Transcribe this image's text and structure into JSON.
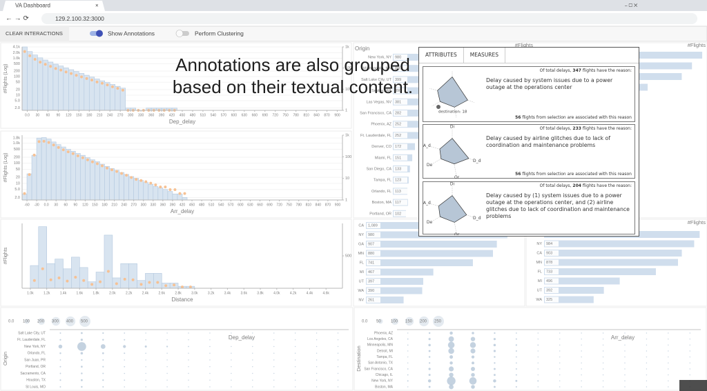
{
  "browser": {
    "tab_title": "VA Dashboard",
    "url_host": "129.2.100.32",
    "url_port": ":3000"
  },
  "toolbar": {
    "clear_button": "CLEAR INTERACTIONS",
    "toggles": [
      {
        "label": "Show Annotations",
        "on": true
      },
      {
        "label": "Perform Clustering",
        "on": false
      }
    ]
  },
  "caption": [
    "Annotations are also grouped",
    "based on their textual content."
  ],
  "histograms": [
    {
      "type": "histogram",
      "xlabel": "Dep_delay",
      "ylabel": "#Flights (Log)",
      "log": true,
      "grid": true,
      "color": "#c8d8ea",
      "marker_color": "#f2a766",
      "bins": [
        -15,
        0,
        15,
        30,
        45,
        60,
        75,
        90,
        105,
        120,
        135,
        150,
        165,
        180,
        195,
        210,
        225,
        240,
        255,
        270,
        285,
        300,
        315,
        330,
        345,
        360,
        375,
        390,
        405,
        420,
        435
      ],
      "values": [
        4100,
        2300,
        1500,
        1050,
        800,
        620,
        480,
        380,
        300,
        240,
        190,
        150,
        120,
        95,
        75,
        60,
        48,
        38,
        30,
        24,
        2,
        2,
        1,
        1,
        2,
        2,
        2,
        2,
        2,
        2
      ],
      "markers": [
        600,
        380,
        260,
        190,
        150,
        120,
        95,
        80,
        65,
        55,
        45,
        38,
        32,
        27,
        22,
        19,
        16,
        13,
        11,
        9,
        1,
        1,
        1,
        1,
        1,
        1,
        1,
        1,
        1,
        1
      ],
      "xlim": [
        -15,
        915
      ],
      "ylim": [
        1.5,
        4100
      ],
      "y2lim": [
        1,
        1000
      ],
      "xticks": [
        {
          "value": 0,
          "label": "0.0"
        },
        30,
        60,
        90,
        120,
        150,
        180,
        210,
        240,
        270,
        300,
        330,
        360,
        390,
        420,
        450,
        480,
        510,
        540,
        570,
        600,
        630,
        660,
        690,
        720,
        750,
        780,
        810,
        840,
        870,
        900
      ],
      "yticks": [
        {
          "value": 4100,
          "label": "4.1k"
        },
        {
          "value": 2000,
          "label": "2.0k"
        },
        {
          "value": 1000,
          "label": "1.0k"
        },
        500,
        200,
        100,
        50,
        20,
        10,
        {
          "value": 5,
          "label": "5.0"
        },
        {
          "value": 2,
          "label": "2.0"
        }
      ],
      "y2ticks": [
        {
          "value": 1000,
          "label": "1k"
        },
        100,
        10,
        1
      ]
    },
    {
      "type": "histogram",
      "xlabel": "Arr_delay",
      "ylabel": "#Flights (Log)",
      "log": true,
      "grid": true,
      "color": "#c8d8ea",
      "marker_color": "#f2a766",
      "bins": [
        -75,
        -60,
        -45,
        -30,
        -15,
        0,
        15,
        30,
        45,
        60,
        75,
        90,
        105,
        120,
        135,
        150,
        165,
        180,
        195,
        210,
        225,
        240,
        255,
        270,
        285,
        300,
        315,
        330,
        345,
        360,
        375,
        390,
        405,
        420,
        435
      ],
      "values": [
        3,
        30,
        250,
        1800,
        1900,
        1600,
        1150,
        850,
        650,
        500,
        400,
        310,
        250,
        190,
        150,
        120,
        90,
        70,
        55,
        45,
        35,
        28,
        22,
        18,
        14,
        11,
        9,
        7,
        6,
        5,
        4,
        3,
        3,
        2
      ],
      "markers": [
        2,
        15,
        120,
        500,
        520,
        460,
        350,
        270,
        210,
        170,
        140,
        110,
        90,
        72,
        58,
        48,
        38,
        30,
        25,
        21,
        17,
        14,
        11,
        9,
        8,
        7,
        6,
        5,
        4,
        4,
        3,
        3,
        2,
        2
      ],
      "xlim": [
        -75,
        915
      ],
      "ylim": [
        1.5,
        2500
      ],
      "y2lim": [
        1,
        1000
      ],
      "xticks": [
        -60,
        -30,
        {
          "value": 0,
          "label": "0.0"
        },
        30,
        60,
        90,
        120,
        150,
        180,
        210,
        240,
        270,
        300,
        330,
        360,
        390,
        420,
        450,
        480,
        510,
        540,
        570,
        600,
        630,
        660,
        690,
        720,
        750,
        780,
        810,
        840,
        870,
        900
      ],
      "yticks": [
        {
          "value": 1800,
          "label": "1.8k"
        },
        {
          "value": 1000,
          "label": "1.0k"
        },
        500,
        200,
        100,
        50,
        20,
        10,
        {
          "value": 5,
          "label": "5.0"
        },
        {
          "value": 2,
          "label": "2.0"
        }
      ],
      "y2ticks": [
        {
          "value": 1000,
          "label": "1k"
        },
        100,
        10,
        1
      ]
    },
    {
      "type": "histogram",
      "xlabel": "Distance",
      "ylabel": "#Flights",
      "log": false,
      "grid": false,
      "color": "#c8d8ea",
      "marker_color": "#f2a766",
      "bins": [
        1000,
        1100,
        1200,
        1300,
        1400,
        1500,
        1600,
        1700,
        1800,
        1900,
        2000,
        2100,
        2200,
        2300,
        2400,
        2500,
        2600,
        2700,
        2800,
        2900,
        3000
      ],
      "values": [
        350,
        950,
        380,
        450,
        300,
        480,
        320,
        100,
        250,
        820,
        160,
        380,
        380,
        120,
        230,
        230,
        80,
        80,
        30,
        30
      ],
      "markers": [
        120,
        300,
        130,
        160,
        110,
        170,
        120,
        60,
        100,
        260,
        70,
        140,
        130,
        60,
        90,
        90,
        40,
        50,
        20,
        20
      ],
      "xlim": [
        900,
        4800
      ],
      "ylim": [
        0,
        1000
      ],
      "y2lim": [
        0,
        1000
      ],
      "xticks": [
        {
          "value": 1000,
          "label": "1.0k"
        },
        {
          "value": 1200,
          "label": "1.2k"
        },
        {
          "value": 1400,
          "label": "1.4k"
        },
        {
          "value": 1600,
          "label": "1.6k"
        },
        {
          "value": 1800,
          "label": "1.8k"
        },
        {
          "value": 2000,
          "label": "2.0k"
        },
        {
          "value": 2200,
          "label": "2.2k"
        },
        {
          "value": 2400,
          "label": "2.4k"
        },
        {
          "value": 2600,
          "label": "2.6k"
        },
        {
          "value": 2800,
          "label": "2.8k"
        },
        {
          "value": 3000,
          "label": "3.0k"
        },
        {
          "value": 3200,
          "label": "3.2k"
        },
        {
          "value": 3400,
          "label": "3.4k"
        },
        {
          "value": 3600,
          "label": "3.6k"
        },
        {
          "value": 3800,
          "label": "3.8k"
        },
        {
          "value": 4000,
          "label": "4.0k"
        },
        {
          "value": 4200,
          "label": "4.2k"
        },
        {
          "value": 4400,
          "label": "4.4k"
        },
        {
          "value": 4600,
          "label": "4.6k"
        }
      ],
      "yticks": [],
      "y2ticks": [
        500
      ]
    }
  ],
  "bar_lists": [
    {
      "type": "bar",
      "title": "Origin",
      "value_title": "#Flights",
      "color": "#bcd0e6",
      "xlim": [
        0,
        1000
      ],
      "categories": [
        "New York, NY",
        "Minneapolis, MN",
        "Salt Lake City, UT",
        "Seattle, WA",
        "Las Vegas, NV",
        "San Francisco, CA",
        "Phoenix, AZ",
        "Ft. Lauderdale, FL",
        "Denver, CO",
        "Miami, FL",
        "San Diego, CA",
        "Tampa, FL",
        "Orlando, FL",
        "Boston, MA",
        "Portland, OR"
      ],
      "values": [
        980,
        880,
        399,
        390,
        381,
        282,
        252,
        252,
        172,
        151,
        133,
        123,
        113,
        117,
        102
      ]
    },
    {
      "type": "bar",
      "title": "Destination",
      "value_title": "#Flights",
      "color": "#bcd0e6",
      "xlim": [
        0,
        1000
      ],
      "categories": [
        null,
        null,
        null,
        null
      ],
      "values": [
        980,
        920,
        860,
        660
      ]
    },
    {
      "type": "bar",
      "color": "#bcd0e6",
      "xlim": [
        0,
        1100
      ],
      "categories": [
        "CA",
        "NY",
        "GA",
        "MN",
        "FL",
        "MI",
        "UT",
        "WA",
        "NV"
      ],
      "values": [
        1089,
        980,
        907,
        880,
        741,
        467,
        397,
        390,
        261
      ],
      "value_labels": [
        "1,089",
        "980",
        "907",
        "880",
        "741",
        "467",
        "397",
        "390",
        "261"
      ]
    },
    {
      "type": "bar",
      "value_title": "#Flights",
      "color": "#bcd0e6",
      "xlim": [
        0,
        1050
      ],
      "categories": [
        null,
        "NY",
        "CA",
        "MN",
        "FL",
        "MI",
        "UT",
        "WA"
      ],
      "values": [
        1020,
        984,
        903,
        878,
        733,
        496,
        392,
        325
      ]
    }
  ],
  "bubble_charts": [
    {
      "type": "bubble",
      "xlabel": "Dep_delay",
      "ylabel": "Origin",
      "color": "#8fa9c4",
      "xlim": [
        -15,
        405
      ],
      "x": [
        0,
        30,
        60,
        90,
        120,
        150,
        180,
        210,
        240,
        270,
        300,
        330,
        360,
        390
      ],
      "categories": [
        "Salt Lake City, UT",
        "Ft. Lauderdale, FL",
        "New York, NY",
        "Orlando, FL",
        "San Juan, PR",
        "Portland, OR",
        "Sacramento, CA",
        "Houston, TX",
        "St Louis, MO"
      ],
      "sizes": [
        [
          8,
          15,
          10,
          6,
          4,
          3,
          2,
          2,
          1,
          1,
          1,
          1,
          1,
          0
        ],
        [
          10,
          20,
          12,
          8,
          5,
          3,
          3,
          2,
          2,
          1,
          1,
          1,
          0,
          0
        ],
        [
          60,
          320,
          90,
          35,
          18,
          10,
          6,
          5,
          3,
          3,
          2,
          2,
          1,
          1
        ],
        [
          12,
          25,
          14,
          8,
          5,
          4,
          3,
          2,
          2,
          1,
          1,
          1,
          1,
          0
        ],
        [
          6,
          10,
          7,
          5,
          3,
          2,
          2,
          1,
          1,
          1,
          0,
          0,
          0,
          0
        ],
        [
          8,
          14,
          9,
          6,
          4,
          3,
          2,
          2,
          1,
          1,
          1,
          0,
          0,
          0
        ],
        [
          7,
          12,
          8,
          5,
          3,
          2,
          2,
          1,
          1,
          1,
          0,
          0,
          0,
          0
        ],
        [
          9,
          16,
          10,
          6,
          4,
          3,
          2,
          2,
          1,
          1,
          1,
          1,
          0,
          0
        ],
        [
          7,
          12,
          8,
          5,
          3,
          2,
          2,
          1,
          1,
          1,
          1,
          0,
          0,
          0
        ]
      ],
      "size_legend": [
        {
          "value": 0,
          "label": "0.0"
        },
        100,
        200,
        300,
        400,
        500
      ]
    },
    {
      "type": "bubble",
      "xlabel": "Arr_delay",
      "ylabel": "Destination",
      "color": "#8fa9c4",
      "xlim": [
        -75,
        345
      ],
      "x": [
        -60,
        -30,
        0,
        30,
        60,
        90,
        120,
        150,
        180,
        210,
        240,
        270,
        300,
        330
      ],
      "categories": [
        "Phoenix, AZ",
        "Los Angeles, CA",
        "Minneapolis, MN",
        "Detroit, MI",
        "Tampa, FL",
        "San Antonio, TX",
        "San Francisco, CA",
        "Chicago, IL",
        "New York, NY",
        "Boston, MA"
      ],
      "sizes": [
        [
          2,
          6,
          20,
          12,
          5,
          3,
          2,
          1,
          1,
          1,
          0,
          0,
          0,
          0
        ],
        [
          3,
          10,
          60,
          40,
          10,
          4,
          2,
          2,
          1,
          1,
          1,
          0,
          0,
          0
        ],
        [
          3,
          12,
          90,
          70,
          12,
          5,
          3,
          2,
          1,
          1,
          1,
          0,
          0,
          0
        ],
        [
          2,
          8,
          70,
          50,
          10,
          4,
          2,
          1,
          1,
          1,
          0,
          0,
          0,
          0
        ],
        [
          2,
          6,
          25,
          18,
          6,
          3,
          2,
          1,
          1,
          0,
          0,
          0,
          0,
          0
        ],
        [
          2,
          5,
          20,
          15,
          5,
          3,
          2,
          1,
          1,
          0,
          0,
          0,
          0,
          0
        ],
        [
          3,
          10,
          50,
          35,
          8,
          4,
          2,
          1,
          1,
          1,
          0,
          0,
          0,
          0
        ],
        [
          3,
          9,
          40,
          30,
          8,
          4,
          2,
          1,
          1,
          1,
          0,
          0,
          0,
          0
        ],
        [
          4,
          20,
          150,
          110,
          20,
          8,
          4,
          2,
          1,
          1,
          1,
          0,
          0,
          0
        ],
        [
          2,
          8,
          45,
          30,
          8,
          4,
          2,
          1,
          1,
          0,
          0,
          0,
          0,
          0
        ]
      ],
      "size_legend": [
        {
          "value": 0,
          "label": "0.0"
        },
        50,
        100,
        150,
        200,
        250
      ]
    }
  ],
  "annotation_panel": {
    "tabs": [
      "ATTRIBUTES",
      "MEASURES"
    ],
    "radar_axes": [
      "Di",
      "D_d",
      "Or",
      "De",
      "A_d"
    ],
    "cards": [
      {
        "total": {
          "lead": "Of total delays,",
          "count": 347,
          "tail": "flights have the reason:"
        },
        "text": "Delay caused by system issues due to a power outage at the operations center",
        "selection": {
          "count": 56,
          "tail": "flights from selection are associated with this reason"
        },
        "radar": [
          0.75,
          0.7,
          0.55,
          0.6,
          0.65
        ],
        "show_axes": false,
        "tooltip": "destination: 18"
      },
      {
        "total": {
          "lead": "Of total delays,",
          "count": 233,
          "tail": "flights have the reason:"
        },
        "text": "Delay caused by airline glitches due to lack of coordination and maintenance problems",
        "selection": {
          "count": 56,
          "tail": "flights from selection are associated with this reason"
        },
        "radar": [
          0.6,
          0.75,
          0.5,
          0.55,
          0.55
        ],
        "show_axes": true
      },
      {
        "total": {
          "lead": "Of total delays,",
          "count": 204,
          "tail": "flights have the reason:"
        },
        "text": "Delay caused by (1) system issues due to a power outage at the operations center, and (2) airline glitches due to lack of coordination and maintenance problems",
        "radar": [
          0.6,
          0.65,
          0.55,
          0.6,
          0.6
        ],
        "show_axes": true
      }
    ]
  }
}
